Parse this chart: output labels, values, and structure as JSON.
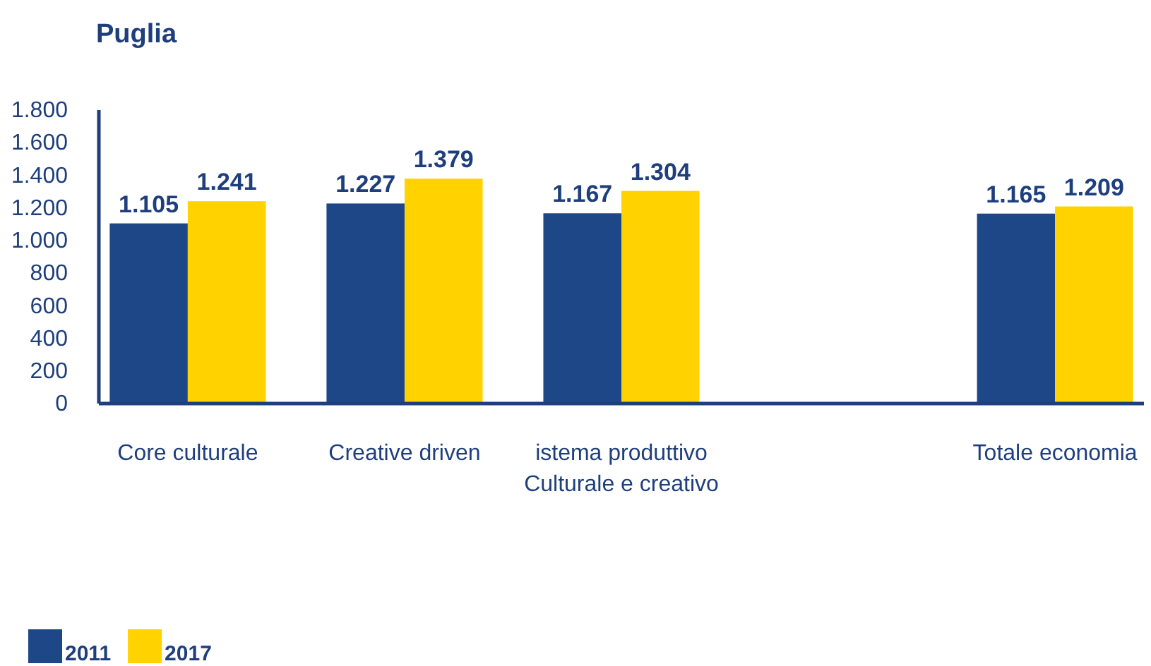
{
  "chart_data": {
    "type": "bar",
    "title": "Puglia",
    "categories": [
      "Core culturale",
      "Creative driven",
      "istema produttivo\nCulturale e creativo",
      null,
      "Totale economia"
    ],
    "series": [
      {
        "name": "2011",
        "color": "#1e4788",
        "values": [
          1105,
          1227,
          1167,
          null,
          1165
        ],
        "value_labels": [
          "1.105",
          "1.227",
          "1.167",
          null,
          "1.165"
        ]
      },
      {
        "name": "2017",
        "color": "#ffd200",
        "values": [
          1241,
          1379,
          1304,
          null,
          1209
        ],
        "value_labels": [
          "1.241",
          "1.379",
          "1.304",
          null,
          "1.209"
        ]
      }
    ],
    "ylim": [
      0,
      1800
    ],
    "yticks": [
      {
        "value": 0,
        "label": "0"
      },
      {
        "value": 200,
        "label": "200"
      },
      {
        "value": 400,
        "label": "400"
      },
      {
        "value": 600,
        "label": "600"
      },
      {
        "value": 800,
        "label": "800"
      },
      {
        "value": 1000,
        "label": "1.000"
      },
      {
        "value": 1200,
        "label": "1.200"
      },
      {
        "value": 1400,
        "label": "1.400"
      },
      {
        "value": 1600,
        "label": "1.600"
      },
      {
        "value": 1800,
        "label": "1.800"
      }
    ],
    "grid": false,
    "legend": "bottom left"
  }
}
